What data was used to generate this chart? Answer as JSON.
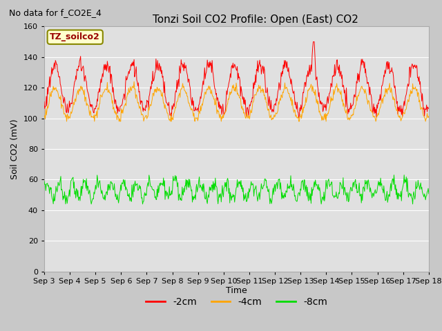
{
  "title": "Tonzi Soil CO2 Profile: Open (East) CO2",
  "no_data_text": "No data for f_CO2E_4",
  "ylabel": "Soil CO2 (mV)",
  "xlabel": "Time",
  "legend_label": "TZ_soilco2",
  "ylim": [
    0,
    160
  ],
  "yticks": [
    0,
    20,
    40,
    60,
    80,
    100,
    120,
    140,
    160
  ],
  "n_days": 15,
  "xtick_labels": [
    "Sep 3",
    "Sep 4",
    "Sep 5",
    "Sep 6",
    "Sep 7",
    "Sep 8",
    "Sep 9",
    "Sep 10",
    "Sep 11",
    "Sep 12",
    "Sep 13",
    "Sep 14",
    "Sep 15",
    "Sep 16",
    "Sep 17",
    "Sep 18"
  ],
  "colors": {
    "2cm": "#ff0000",
    "4cm": "#ffa500",
    "8cm": "#00dd00",
    "fig_bg": "#c8c8c8",
    "plot_bg": "#e0e0e0",
    "grid": "#ffffff"
  },
  "legend_items": [
    {
      "label": "-2cm",
      "color": "#ff0000"
    },
    {
      "label": "-4cm",
      "color": "#ffa500"
    },
    {
      "label": "-8cm",
      "color": "#00dd00"
    }
  ]
}
